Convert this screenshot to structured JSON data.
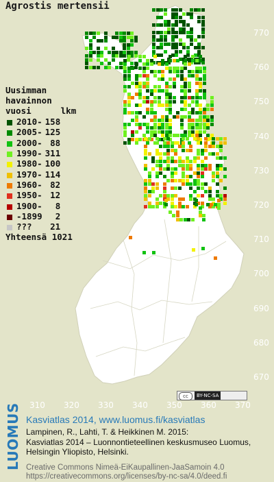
{
  "map": {
    "title": "Agrostis mertensii",
    "y_axis_labels": [
      "770",
      "760",
      "750",
      "740",
      "730",
      "720",
      "710",
      "700",
      "690",
      "680",
      "670"
    ],
    "x_axis_labels": [
      "310",
      "320",
      "330",
      "340",
      "350",
      "360",
      "370"
    ],
    "colors": {
      "background": "#e3e4c9",
      "land": "#ffffff",
      "border": "#c8c8b0",
      "no_data": "#c6c6c6"
    }
  },
  "legend": {
    "heading_lines": [
      "Uusimman",
      "havainnon",
      "vuosi"
    ],
    "count_header": "lkm",
    "items": [
      {
        "label": "2010-",
        "count": "158",
        "color": "#005200"
      },
      {
        "label": "2005-",
        "count": "125",
        "color": "#008a00"
      },
      {
        "label": "2000-",
        "count": "88",
        "color": "#11c211"
      },
      {
        "label": "1990-",
        "count": "311",
        "color": "#6ff020"
      },
      {
        "label": "1980-",
        "count": "100",
        "color": "#f2f200"
      },
      {
        "label": "1970-",
        "count": "114",
        "color": "#f0c000"
      },
      {
        "label": "1960-",
        "count": "82",
        "color": "#ee7a00"
      },
      {
        "label": "1950-",
        "count": "12",
        "color": "#e0301e"
      },
      {
        "label": "1900-",
        "count": "8",
        "color": "#b50000"
      },
      {
        "label": "-1899",
        "count": "2",
        "color": "#6a0000"
      },
      {
        "label": "???",
        "count": "21",
        "color": "#c6c6c6"
      }
    ],
    "total_label": "Yhteensä",
    "total_count": "1021"
  },
  "license_badge": {
    "cc": "cc",
    "tags": "BY-NC-SA"
  },
  "brand": "LUOMUS",
  "credits": {
    "title": "Kasviatlas 2014, www.luomus.fi/kasviatlas",
    "citation_line1": "Lampinen, R., Lahti, T. & Heikkinen M. 2015:",
    "citation_line2": "Kasviatlas 2014 – Luonnontieteellinen keskusmuseo Luomus,",
    "citation_line3": "Helsingin Yliopisto, Helsinki.",
    "license_line1": "Creative Commons Nimeä-EiKaupallinen-JaaSamoin 4.0",
    "license_line2": "https://creativecommons.org/licenses/by-nc-sa/4.0/deed.fi"
  }
}
